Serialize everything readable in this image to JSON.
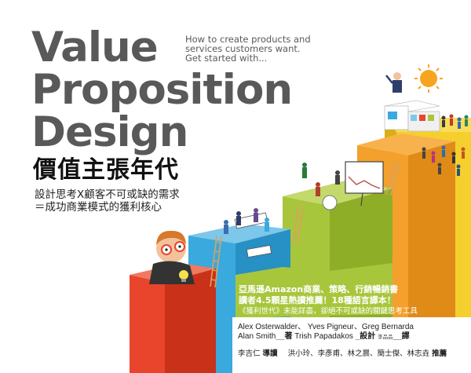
{
  "cover": {
    "title_lines": [
      "Value",
      "Proposition",
      "Design"
    ],
    "tagline_lines": [
      "How to create products and",
      "services customers want.",
      "Get started with..."
    ],
    "chinese_title": "價值主張年代",
    "chinese_subtitle_lines": [
      "設計思考Ⅹ顧客不可或缺的需求",
      "＝成功商業模式的獲利核心"
    ],
    "blurb_lines": [
      "亞馬遜Amazon商業、策略、行銷暢銷書",
      "讀者4.5顆星熱讀推薦！18種語言譯本！",
      "《獲利世代》未能詳盡，卻絕不可或缺的關鍵思考工具"
    ],
    "authors_line1": "Alex Osterwalder、 Yves Pigneur、Greg Bernarda",
    "authors_line2_a": "Alan Smith",
    "authors_line2_a_role": "__著",
    "authors_line2_b": "Trish Papadakos",
    "authors_line2_b_role": "_設計",
    "translator_name": "李品品",
    "translator_role": "__譯",
    "guide_name": "李吉仁",
    "guide_role": "導讀",
    "recommenders": "洪小玲、李彥甫、林之晨、簡士傑、林志垚",
    "recommend_role": "推薦"
  },
  "colors": {
    "title_gray": "#595959",
    "step_red": "#e8452c",
    "step_blue": "#3aa9de",
    "step_green": "#a8c63c",
    "step_orange": "#f3a02c",
    "step_yellow": "#f5cf2e"
  }
}
